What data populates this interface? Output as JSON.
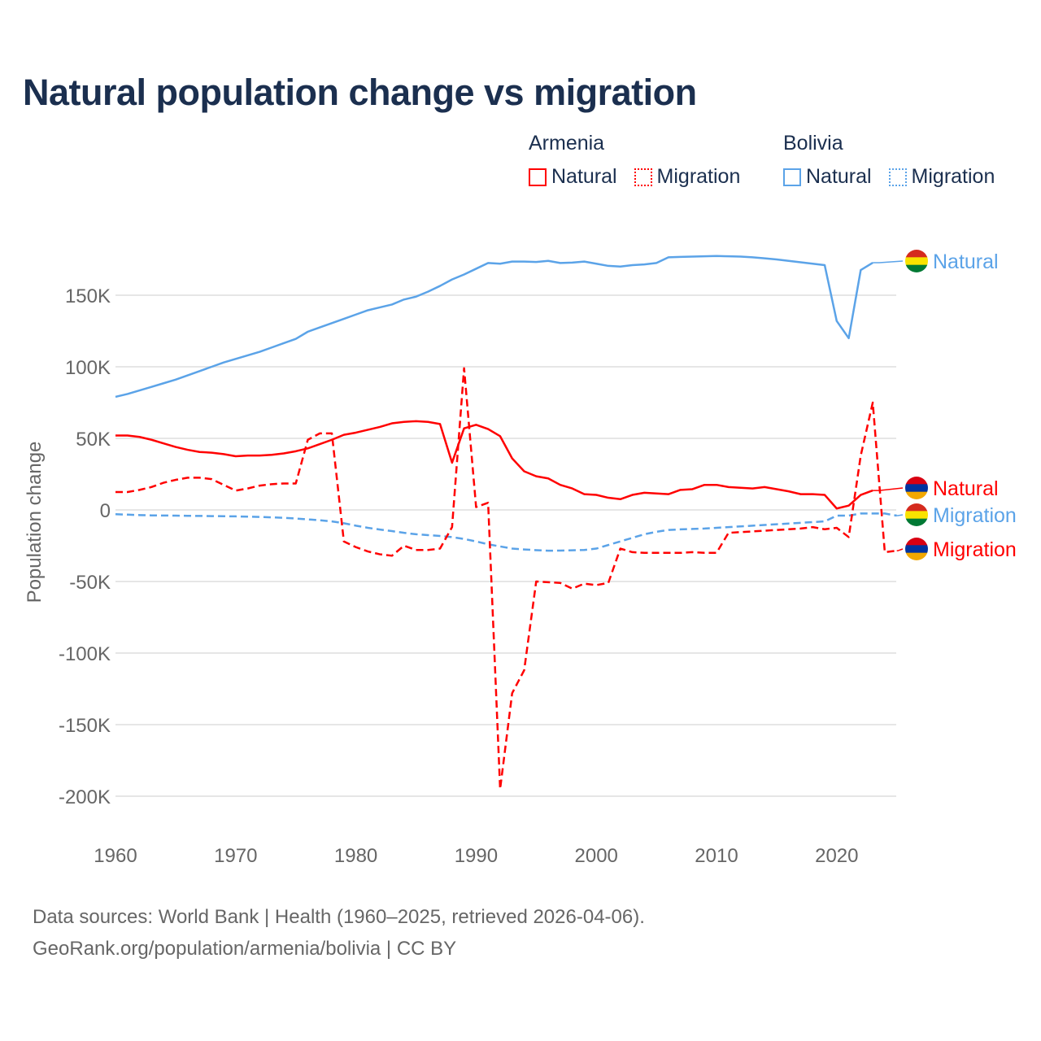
{
  "title": "Natural population change vs migration",
  "legend": [
    {
      "group": "Armenia",
      "items": [
        {
          "label": "Natural",
          "style": "solid",
          "color": "#ff0000"
        },
        {
          "label": "Migration",
          "style": "dotted",
          "color": "#ff0000"
        }
      ]
    },
    {
      "group": "Bolivia",
      "items": [
        {
          "label": "Natural",
          "style": "solid",
          "color": "#5ba3e8"
        },
        {
          "label": "Migration",
          "style": "dotted",
          "color": "#5ba3e8"
        }
      ]
    }
  ],
  "footer": {
    "line1": "Data sources: World Bank | Health (1960–2025, retrieved 2026-04-06).",
    "line2": "GeoRank.org/population/armenia/bolivia | CC BY"
  },
  "chart_data": {
    "type": "line",
    "title": "Natural population change vs migration",
    "xlabel": "",
    "ylabel": "Population change",
    "xlim": [
      1960,
      2025
    ],
    "ylim": [
      -220000,
      185000
    ],
    "grid": true,
    "x_ticks": [
      1960,
      1970,
      1980,
      1990,
      2000,
      2010,
      2020
    ],
    "y_ticks": [
      {
        "v": -200000,
        "label": "-200K"
      },
      {
        "v": -150000,
        "label": "-150K"
      },
      {
        "v": -100000,
        "label": "-100K"
      },
      {
        "v": -50000,
        "label": "-50K"
      },
      {
        "v": 0,
        "label": "0"
      },
      {
        "v": 50000,
        "label": "50K"
      },
      {
        "v": 100000,
        "label": "100K"
      },
      {
        "v": 150000,
        "label": "150K"
      }
    ],
    "series": [
      {
        "name": "Bolivia Natural",
        "country": "Bolivia",
        "label": "Natural",
        "color": "#5ba3e8",
        "dash": false,
        "flag": [
          "#d52b1e",
          "#f9e300",
          "#007934"
        ],
        "start": 1960,
        "values": [
          79,
          81,
          83.5,
          86,
          88.5,
          91,
          94,
          97,
          100,
          103,
          105.5,
          108,
          110.5,
          113.5,
          116.5,
          119.5,
          124.5,
          127.5,
          130.5,
          133.5,
          136.5,
          139.5,
          141.5,
          143.5,
          147,
          149,
          152.5,
          156.5,
          161,
          164.5,
          168.5,
          172.5,
          172,
          173.5,
          173.5,
          173.2,
          174,
          172.5,
          172.8,
          173.5,
          172,
          170.5,
          170,
          171,
          171.5,
          172.5,
          176.5,
          176.8,
          177,
          177.2,
          177.4,
          177.2,
          177,
          176.5,
          175.8,
          175,
          174,
          173,
          172,
          171,
          132,
          120,
          167.6,
          172.7
        ]
      },
      {
        "name": "Bolivia Migration",
        "country": "Bolivia",
        "label": "Migration",
        "color": "#5ba3e8",
        "dash": true,
        "flag": [
          "#d52b1e",
          "#f9e300",
          "#007934"
        ],
        "start": 1960,
        "values": [
          -3,
          -3.3,
          -3.6,
          -3.8,
          -3.9,
          -4,
          -4.1,
          -4.2,
          -4.3,
          -4.4,
          -4.5,
          -4.7,
          -4.9,
          -5.2,
          -5.5,
          -6,
          -6.6,
          -7.2,
          -8,
          -9.3,
          -11,
          -12.5,
          -13.7,
          -14.8,
          -16,
          -17,
          -17.6,
          -18.2,
          -19,
          -20.3,
          -22,
          -24,
          -25.5,
          -27,
          -27.6,
          -28.1,
          -28.5,
          -28.4,
          -28.2,
          -28,
          -27,
          -24.5,
          -22,
          -19.5,
          -17,
          -15.3,
          -14,
          -13.6,
          -13.3,
          -13,
          -12.5,
          -12,
          -11.5,
          -11,
          -10.5,
          -10,
          -9.5,
          -9,
          -8.5,
          -8,
          -4,
          -4,
          -2.5,
          -2.5,
          -2.5,
          -4
        ]
      },
      {
        "name": "Armenia Natural",
        "country": "Armenia",
        "label": "Natural",
        "color": "#ff0000",
        "dash": false,
        "flag": [
          "#d90012",
          "#0033a0",
          "#f2a800"
        ],
        "start": 1960,
        "values": [
          52,
          52,
          51,
          49,
          46.5,
          44,
          42,
          40.5,
          40,
          39,
          37.5,
          38,
          38,
          38.5,
          39.5,
          41,
          43,
          46,
          49,
          52.5,
          54,
          56,
          58,
          60.5,
          61.5,
          62,
          61.5,
          60,
          33,
          57,
          59.5,
          56.5,
          51.5,
          36,
          27,
          23.5,
          22,
          17.5,
          15,
          11,
          10.5,
          8.5,
          7.5,
          10.5,
          12,
          11.5,
          11,
          14,
          14.5,
          17.5,
          17.5,
          16,
          15.5,
          15,
          16,
          14.5,
          13,
          11,
          11,
          10.5,
          1,
          3,
          10.5,
          13.6
        ]
      },
      {
        "name": "Armenia Migration",
        "country": "Armenia",
        "label": "Migration",
        "color": "#ff0000",
        "dash": true,
        "flag": [
          "#d90012",
          "#0033a0",
          "#f2a800"
        ],
        "start": 1960,
        "values": [
          12.5,
          12.5,
          14,
          16,
          19,
          21,
          22.5,
          22.5,
          21.5,
          17.5,
          13.5,
          15,
          17,
          18,
          18.5,
          18.5,
          49,
          53.5,
          53.5,
          -22,
          -26,
          -29,
          -31,
          -32,
          -25,
          -28,
          -28,
          -27,
          -12,
          99,
          2,
          5,
          -195,
          -128,
          -112,
          -50,
          -50.5,
          -51,
          -55,
          -51.5,
          -52.5,
          -51,
          -27,
          -29.5,
          -30,
          -30,
          -30,
          -30,
          -29.5,
          -30,
          -30,
          -16,
          -15.5,
          -15,
          -14.5,
          -14,
          -13.5,
          -13,
          -12,
          -13.5,
          -12.5,
          -19,
          38,
          75,
          -29.5,
          -28.5
        ]
      }
    ],
    "value_unit": "thousands"
  }
}
